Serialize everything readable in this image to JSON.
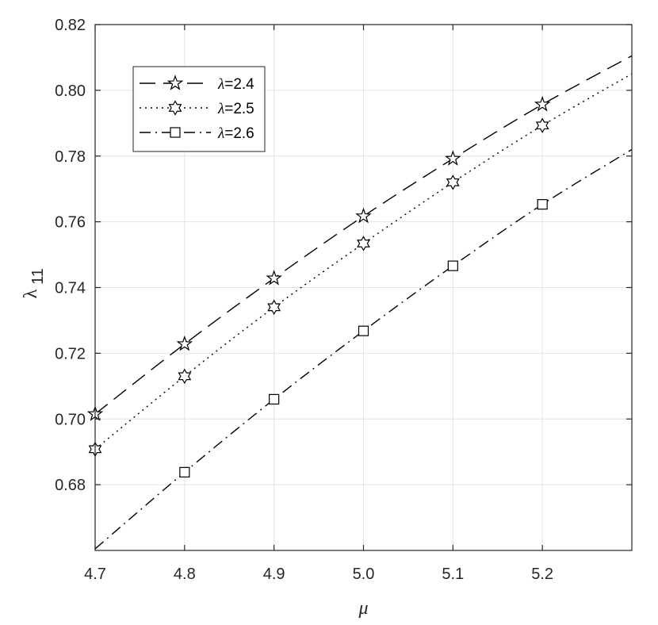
{
  "chart_data": {
    "type": "line",
    "title": "",
    "xlabel": "μ",
    "ylabel": "λ",
    "ylabel_sub": "11",
    "xlim": [
      4.7,
      5.3
    ],
    "ylim": [
      0.66,
      0.82
    ],
    "xticks": [
      4.7,
      4.8,
      4.9,
      5.0,
      5.1,
      5.2
    ],
    "xtick_labels": [
      "4.7",
      "4.8",
      "4.9",
      "5.0",
      "5.1",
      "5.2"
    ],
    "yticks": [
      0.68,
      0.7,
      0.72,
      0.74,
      0.76,
      0.78,
      0.8,
      0.82
    ],
    "ytick_labels": [
      "0.68",
      "0.70",
      "0.72",
      "0.74",
      "0.76",
      "0.78",
      "0.80",
      "0.82"
    ],
    "grid": true,
    "legend_position": "top-left",
    "series": [
      {
        "name": "λ=2.4",
        "legend_symbol": "λ",
        "legend_value": "=2.4",
        "line_style": "dashed",
        "marker": "pentagram",
        "color": "#000000",
        "x": [
          4.7,
          4.8,
          4.9,
          5.0,
          5.1,
          5.2
        ],
        "y": [
          0.7015,
          0.7228,
          0.7428,
          0.7617,
          0.7792,
          0.7957
        ],
        "curve_x": [
          4.7,
          4.8,
          4.9,
          5.0,
          5.1,
          5.2,
          5.3
        ],
        "curve_y": [
          0.7015,
          0.7228,
          0.7428,
          0.7617,
          0.7792,
          0.7957,
          0.8105
        ]
      },
      {
        "name": "λ=2.5",
        "legend_symbol": "λ",
        "legend_value": "=2.5",
        "line_style": "dotted",
        "marker": "hexagram",
        "color": "#000000",
        "x": [
          4.7,
          4.8,
          4.9,
          5.0,
          5.1,
          5.2
        ],
        "y": [
          0.6908,
          0.713,
          0.734,
          0.7534,
          0.772,
          0.7893
        ],
        "curve_x": [
          4.7,
          4.8,
          4.9,
          5.0,
          5.1,
          5.2,
          5.3
        ],
        "curve_y": [
          0.6908,
          0.713,
          0.734,
          0.7534,
          0.772,
          0.7893,
          0.805
        ]
      },
      {
        "name": "λ=2.6",
        "legend_symbol": "λ",
        "legend_value": "=2.6",
        "line_style": "dashdot",
        "marker": "square",
        "color": "#000000",
        "x": [
          4.8,
          4.9,
          5.0,
          5.1,
          5.2
        ],
        "y": [
          0.6838,
          0.706,
          0.7268,
          0.7466,
          0.7653
        ],
        "curve_x": [
          4.7,
          4.8,
          4.9,
          5.0,
          5.1,
          5.2,
          5.3
        ],
        "curve_y": [
          0.6605,
          0.6838,
          0.706,
          0.7268,
          0.7466,
          0.7653,
          0.782
        ]
      }
    ]
  }
}
